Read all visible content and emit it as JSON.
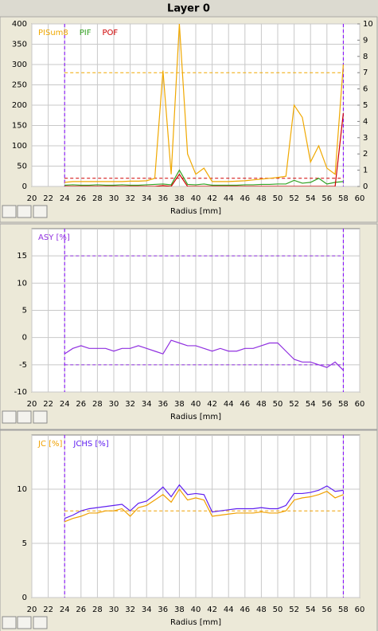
{
  "title": "Layer 0",
  "chart_data": [
    {
      "type": "line",
      "xlabel": "Radius [mm]",
      "x": [
        24,
        25,
        26,
        27,
        28,
        29,
        30,
        31,
        32,
        33,
        34,
        35,
        36,
        37,
        38,
        39,
        40,
        41,
        42,
        43,
        44,
        45,
        46,
        47,
        48,
        49,
        50,
        51,
        52,
        53,
        54,
        55,
        56,
        57,
        58
      ],
      "series": [
        {
          "name": "PISum8",
          "color": "#f0a800",
          "values": [
            10,
            12,
            12,
            12,
            12,
            12,
            12,
            12,
            13,
            13,
            14,
            20,
            285,
            30,
            400,
            80,
            30,
            45,
            12,
            12,
            12,
            13,
            14,
            16,
            18,
            20,
            22,
            25,
            200,
            170,
            60,
            100,
            45,
            30,
            300
          ]
        },
        {
          "name": "PIF",
          "color": "#30a020",
          "values": [
            3,
            4,
            3,
            3,
            4,
            3,
            3,
            4,
            3,
            3,
            4,
            5,
            6,
            4,
            40,
            5,
            4,
            6,
            3,
            3,
            3,
            3,
            4,
            4,
            5,
            5,
            6,
            6,
            15,
            8,
            10,
            20,
            6,
            10,
            12
          ]
        },
        {
          "name": "POF",
          "color": "#d00000",
          "values": [
            0,
            0,
            0,
            0,
            0,
            0,
            0,
            0,
            0,
            0,
            0,
            0,
            2,
            0,
            30,
            0,
            0,
            0,
            0,
            0,
            0,
            0,
            0,
            0,
            0,
            0,
            0,
            0,
            0,
            0,
            0,
            0,
            0,
            0,
            180
          ]
        }
      ],
      "hlines": [
        {
          "value": 280,
          "color": "#f0a800"
        },
        {
          "value": 20,
          "color": "#d00000"
        }
      ],
      "vlines": [
        24,
        58
      ],
      "vline_color": "#8000ff",
      "xlim": [
        20,
        60
      ],
      "xticks": [
        20,
        22,
        24,
        26,
        28,
        30,
        32,
        34,
        36,
        38,
        40,
        42,
        44,
        46,
        48,
        50,
        52,
        54,
        56,
        58,
        60
      ],
      "ylim": [
        0,
        400
      ],
      "yticks": [
        0,
        50,
        100,
        150,
        200,
        250,
        300,
        350,
        400
      ],
      "y2lim": [
        0,
        10
      ],
      "y2ticks": [
        0,
        1,
        2,
        3,
        4,
        5,
        6,
        7,
        8,
        9,
        10
      ],
      "grid": true
    },
    {
      "type": "line",
      "xlabel": "Radius [mm]",
      "x": [
        24,
        25,
        26,
        27,
        28,
        29,
        30,
        31,
        32,
        33,
        34,
        35,
        36,
        37,
        38,
        39,
        40,
        41,
        42,
        43,
        44,
        45,
        46,
        47,
        48,
        49,
        50,
        51,
        52,
        53,
        54,
        55,
        56,
        57,
        58
      ],
      "series": [
        {
          "name": "ASY [%]",
          "color": "#9030e0",
          "values": [
            -3,
            -2,
            -1.5,
            -2,
            -2,
            -2,
            -2.5,
            -2,
            -2,
            -1.5,
            -2,
            -2.5,
            -3,
            -0.5,
            -1,
            -1.5,
            -1.5,
            -2,
            -2.5,
            -2,
            -2.5,
            -2.5,
            -2,
            -2,
            -1.5,
            -1,
            -1,
            -2.5,
            -4,
            -4.5,
            -4.5,
            -5,
            -5.5,
            -4.5,
            -6
          ]
        }
      ],
      "hlines": [
        {
          "value": 15,
          "color": "#9030e0"
        },
        {
          "value": -5,
          "color": "#9030e0"
        }
      ],
      "vlines": [
        24,
        58
      ],
      "vline_color": "#8000ff",
      "xlim": [
        20,
        60
      ],
      "xticks": [
        20,
        22,
        24,
        26,
        28,
        30,
        32,
        34,
        36,
        38,
        40,
        42,
        44,
        46,
        48,
        50,
        52,
        54,
        56,
        58,
        60
      ],
      "ylim": [
        -10,
        20
      ],
      "yticks": [
        -10,
        -5,
        0,
        5,
        10,
        15
      ],
      "grid": true
    },
    {
      "type": "line",
      "xlabel": "Radius [mm]",
      "x": [
        24,
        25,
        26,
        27,
        28,
        29,
        30,
        31,
        32,
        33,
        34,
        35,
        36,
        37,
        38,
        39,
        40,
        41,
        42,
        43,
        44,
        45,
        46,
        47,
        48,
        49,
        50,
        51,
        52,
        53,
        54,
        55,
        56,
        57,
        58
      ],
      "series": [
        {
          "name": "JC [%]",
          "color": "#f0a000",
          "values": [
            7,
            7.3,
            7.5,
            7.8,
            7.8,
            8,
            8,
            8.2,
            7.5,
            8.3,
            8.5,
            9,
            9.5,
            8.8,
            10,
            9,
            9.2,
            9,
            7.5,
            7.6,
            7.7,
            7.8,
            7.8,
            7.8,
            7.9,
            7.8,
            7.8,
            8,
            9,
            9.2,
            9.3,
            9.5,
            9.8,
            9.2,
            9.5
          ]
        },
        {
          "name": "JCHS [%]",
          "color": "#6020f0",
          "values": [
            7.3,
            7.6,
            8,
            8.2,
            8.3,
            8.4,
            8.5,
            8.6,
            8,
            8.7,
            8.9,
            9.5,
            10.2,
            9.3,
            10.4,
            9.5,
            9.6,
            9.5,
            7.9,
            8,
            8.1,
            8.2,
            8.2,
            8.2,
            8.3,
            8.2,
            8.2,
            8.5,
            9.6,
            9.6,
            9.7,
            9.9,
            10.3,
            9.8,
            9.9
          ]
        }
      ],
      "hlines": [
        {
          "value": 8,
          "color": "#f0a000"
        }
      ],
      "vlines": [
        24,
        58
      ],
      "vline_color": "#8000ff",
      "xlim": [
        20,
        60
      ],
      "xticks": [
        20,
        22,
        24,
        26,
        28,
        30,
        32,
        34,
        36,
        38,
        40,
        42,
        44,
        46,
        48,
        50,
        52,
        54,
        56,
        58,
        60
      ],
      "ylim": [
        0,
        15
      ],
      "yticks": [
        0,
        5,
        10
      ],
      "grid": true
    }
  ]
}
